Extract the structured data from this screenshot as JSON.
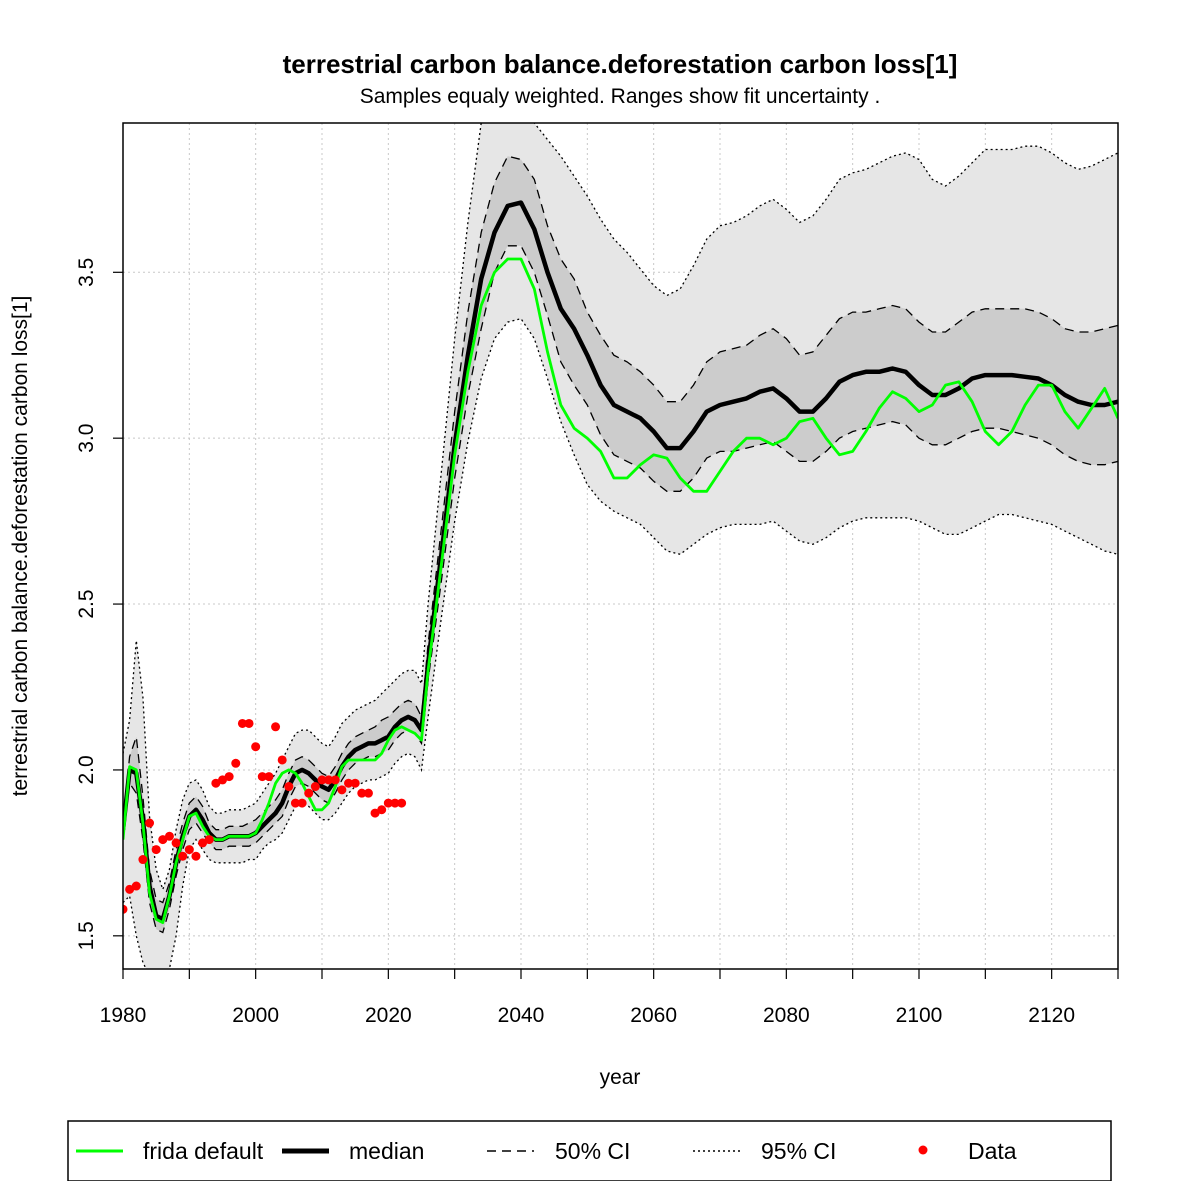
{
  "chart_data": {
    "type": "line",
    "title": "terrestrial carbon balance.deforestation carbon loss[1]",
    "subtitle": "Samples equaly weighted. Ranges show  fit uncertainty .",
    "xlabel": "year",
    "ylabel": "terrestrial carbon balance.deforestation carbon loss[1]",
    "xlim": [
      1980,
      2130
    ],
    "ylim": [
      1.4,
      3.95
    ],
    "x_ticks": [
      1980,
      2000,
      2020,
      2040,
      2060,
      2080,
      2100,
      2120
    ],
    "x_minor_ticks": [
      1990,
      2010,
      2030,
      2050,
      2070,
      2090,
      2110,
      2130
    ],
    "y_ticks": [
      1.5,
      2.0,
      2.5,
      3.0,
      3.5
    ],
    "y_tick_labels": [
      "1.5",
      "2.0",
      "2.5",
      "3.0",
      "3.5"
    ],
    "grid": true,
    "legend_position": "bottom",
    "legend": [
      {
        "label": "frida default",
        "style": "line",
        "color": "#00ff00"
      },
      {
        "label": "median",
        "style": "thick-line",
        "color": "#000000"
      },
      {
        "label": "50% CI",
        "style": "dashed",
        "color": "#000000"
      },
      {
        "label": "95% CI",
        "style": "dotted",
        "color": "#000000"
      },
      {
        "label": "Data",
        "style": "point",
        "color": "#ff0000"
      }
    ],
    "colors": {
      "frida_default": "#00ff00",
      "median": "#000000",
      "data": "#ff0000",
      "ci50_fill": "#cccccc",
      "ci95_fill": "#e6e6e6",
      "grid": "#c8c8c8"
    },
    "x": [
      1980,
      1981,
      1982,
      1983,
      1984,
      1985,
      1986,
      1987,
      1988,
      1989,
      1990,
      1991,
      1992,
      1993,
      1994,
      1995,
      1996,
      1997,
      1998,
      1999,
      2000,
      2001,
      2002,
      2003,
      2004,
      2005,
      2006,
      2007,
      2008,
      2009,
      2010,
      2011,
      2012,
      2013,
      2014,
      2015,
      2016,
      2017,
      2018,
      2019,
      2020,
      2021,
      2022,
      2023,
      2024,
      2025,
      2026,
      2028,
      2030,
      2032,
      2034,
      2036,
      2038,
      2040,
      2042,
      2044,
      2046,
      2048,
      2050,
      2052,
      2054,
      2056,
      2058,
      2060,
      2062,
      2064,
      2066,
      2068,
      2070,
      2072,
      2074,
      2076,
      2078,
      2080,
      2082,
      2084,
      2086,
      2088,
      2090,
      2092,
      2094,
      2096,
      2098,
      2100,
      2102,
      2104,
      2106,
      2108,
      2110,
      2112,
      2114,
      2116,
      2118,
      2120,
      2122,
      2124,
      2126,
      2128,
      2130
    ],
    "series": [
      {
        "name": "median",
        "values": [
          1.82,
          2.0,
          1.99,
          1.85,
          1.65,
          1.56,
          1.55,
          1.62,
          1.72,
          1.8,
          1.86,
          1.88,
          1.85,
          1.81,
          1.79,
          1.79,
          1.8,
          1.8,
          1.8,
          1.8,
          1.81,
          1.83,
          1.85,
          1.87,
          1.9,
          1.95,
          1.99,
          2.0,
          1.99,
          1.97,
          1.95,
          1.94,
          1.97,
          2.01,
          2.04,
          2.06,
          2.07,
          2.08,
          2.08,
          2.09,
          2.1,
          2.13,
          2.15,
          2.16,
          2.15,
          2.12,
          2.32,
          2.65,
          2.98,
          3.25,
          3.48,
          3.62,
          3.7,
          3.71,
          3.63,
          3.5,
          3.39,
          3.33,
          3.25,
          3.16,
          3.1,
          3.08,
          3.06,
          3.02,
          2.97,
          2.97,
          3.02,
          3.08,
          3.1,
          3.11,
          3.12,
          3.14,
          3.15,
          3.12,
          3.08,
          3.08,
          3.12,
          3.17,
          3.19,
          3.2,
          3.2,
          3.21,
          3.2,
          3.16,
          3.13,
          3.13,
          3.15,
          3.18,
          3.19,
          3.19,
          3.19,
          3.185,
          3.18,
          3.16,
          3.13,
          3.11,
          3.1,
          3.1,
          3.11
        ]
      },
      {
        "name": "frida default",
        "values": [
          1.79,
          2.01,
          2.0,
          1.84,
          1.63,
          1.55,
          1.54,
          1.62,
          1.72,
          1.79,
          1.86,
          1.87,
          1.83,
          1.8,
          1.79,
          1.79,
          1.8,
          1.8,
          1.8,
          1.8,
          1.81,
          1.85,
          1.9,
          1.96,
          1.99,
          2.0,
          1.99,
          1.96,
          1.92,
          1.88,
          1.88,
          1.9,
          1.95,
          2.01,
          2.03,
          2.03,
          2.03,
          2.03,
          2.03,
          2.05,
          2.09,
          2.12,
          2.13,
          2.12,
          2.11,
          2.09,
          2.3,
          2.62,
          2.95,
          3.2,
          3.4,
          3.5,
          3.54,
          3.54,
          3.45,
          3.26,
          3.1,
          3.03,
          3.0,
          2.96,
          2.88,
          2.88,
          2.92,
          2.95,
          2.94,
          2.88,
          2.84,
          2.84,
          2.9,
          2.96,
          3.0,
          3.0,
          2.98,
          3.0,
          3.05,
          3.06,
          3.0,
          2.95,
          2.96,
          3.02,
          3.09,
          3.14,
          3.12,
          3.08,
          3.1,
          3.16,
          3.17,
          3.11,
          3.02,
          2.98,
          3.02,
          3.1,
          3.16,
          3.16,
          3.08,
          3.03,
          3.09,
          3.15,
          3.06
        ]
      },
      {
        "name": "50% CI upper",
        "values": [
          1.84,
          2.04,
          2.1,
          1.92,
          1.7,
          1.61,
          1.6,
          1.66,
          1.76,
          1.84,
          1.9,
          1.92,
          1.89,
          1.84,
          1.82,
          1.82,
          1.83,
          1.83,
          1.83,
          1.84,
          1.85,
          1.87,
          1.89,
          1.91,
          1.94,
          1.99,
          2.03,
          2.04,
          2.03,
          2.01,
          1.99,
          1.98,
          2.01,
          2.05,
          2.08,
          2.1,
          2.11,
          2.12,
          2.13,
          2.15,
          2.16,
          2.18,
          2.2,
          2.21,
          2.2,
          2.16,
          2.38,
          2.73,
          3.08,
          3.38,
          3.62,
          3.77,
          3.85,
          3.84,
          3.78,
          3.64,
          3.54,
          3.48,
          3.38,
          3.31,
          3.25,
          3.23,
          3.2,
          3.16,
          3.11,
          3.11,
          3.16,
          3.23,
          3.26,
          3.27,
          3.28,
          3.31,
          3.33,
          3.3,
          3.25,
          3.26,
          3.31,
          3.36,
          3.38,
          3.38,
          3.39,
          3.4,
          3.39,
          3.35,
          3.32,
          3.32,
          3.35,
          3.38,
          3.39,
          3.39,
          3.39,
          3.39,
          3.38,
          3.36,
          3.33,
          3.32,
          3.32,
          3.33,
          3.34
        ]
      },
      {
        "name": "50% CI lower",
        "values": [
          1.79,
          1.96,
          1.93,
          1.79,
          1.6,
          1.52,
          1.51,
          1.58,
          1.68,
          1.76,
          1.82,
          1.84,
          1.81,
          1.78,
          1.76,
          1.76,
          1.77,
          1.77,
          1.77,
          1.77,
          1.78,
          1.8,
          1.82,
          1.84,
          1.86,
          1.91,
          1.95,
          1.96,
          1.95,
          1.93,
          1.91,
          1.9,
          1.93,
          1.97,
          2.0,
          2.02,
          2.03,
          2.04,
          2.04,
          2.05,
          2.06,
          2.09,
          2.11,
          2.12,
          2.11,
          2.08,
          2.27,
          2.57,
          2.88,
          3.13,
          3.33,
          3.5,
          3.58,
          3.58,
          3.5,
          3.37,
          3.23,
          3.16,
          3.1,
          3.01,
          2.95,
          2.93,
          2.91,
          2.87,
          2.84,
          2.84,
          2.88,
          2.94,
          2.96,
          2.96,
          2.97,
          2.98,
          2.99,
          2.96,
          2.93,
          2.93,
          2.96,
          3.0,
          3.02,
          3.03,
          3.04,
          3.05,
          3.04,
          3.0,
          2.98,
          2.98,
          3.0,
          3.02,
          3.03,
          3.03,
          3.02,
          3.01,
          3.0,
          2.98,
          2.95,
          2.93,
          2.92,
          2.92,
          2.93
        ]
      },
      {
        "name": "95% CI upper",
        "values": [
          2.05,
          2.15,
          2.39,
          2.22,
          1.86,
          1.7,
          1.64,
          1.7,
          1.82,
          1.91,
          1.96,
          1.97,
          1.94,
          1.89,
          1.87,
          1.87,
          1.88,
          1.88,
          1.88,
          1.89,
          1.9,
          1.93,
          1.96,
          1.99,
          2.03,
          2.07,
          2.11,
          2.12,
          2.12,
          2.1,
          2.08,
          2.07,
          2.1,
          2.14,
          2.16,
          2.18,
          2.19,
          2.2,
          2.21,
          2.23,
          2.25,
          2.27,
          2.29,
          2.3,
          2.3,
          2.26,
          2.5,
          2.9,
          3.3,
          3.65,
          3.95,
          4.0,
          4.0,
          4.0,
          3.95,
          3.9,
          3.85,
          3.79,
          3.73,
          3.66,
          3.6,
          3.56,
          3.51,
          3.46,
          3.43,
          3.45,
          3.52,
          3.6,
          3.64,
          3.65,
          3.67,
          3.7,
          3.72,
          3.69,
          3.65,
          3.67,
          3.72,
          3.78,
          3.8,
          3.81,
          3.83,
          3.85,
          3.86,
          3.84,
          3.78,
          3.76,
          3.79,
          3.83,
          3.87,
          3.87,
          3.87,
          3.88,
          3.88,
          3.86,
          3.83,
          3.81,
          3.82,
          3.84,
          3.86
        ]
      },
      {
        "name": "95% CI lower",
        "values": [
          1.6,
          1.62,
          1.5,
          1.42,
          1.38,
          1.38,
          1.36,
          1.4,
          1.5,
          1.65,
          1.76,
          1.79,
          1.76,
          1.73,
          1.72,
          1.72,
          1.72,
          1.72,
          1.72,
          1.73,
          1.73,
          1.76,
          1.78,
          1.79,
          1.81,
          1.85,
          1.89,
          1.9,
          1.89,
          1.87,
          1.85,
          1.85,
          1.87,
          1.9,
          1.93,
          1.95,
          1.96,
          1.97,
          1.97,
          1.98,
          1.99,
          2.02,
          2.04,
          2.05,
          2.04,
          2.0,
          2.16,
          2.46,
          2.75,
          2.99,
          3.18,
          3.3,
          3.35,
          3.36,
          3.3,
          3.18,
          3.05,
          2.95,
          2.86,
          2.81,
          2.78,
          2.76,
          2.74,
          2.7,
          2.66,
          2.65,
          2.68,
          2.71,
          2.73,
          2.74,
          2.74,
          2.74,
          2.75,
          2.72,
          2.69,
          2.68,
          2.7,
          2.73,
          2.75,
          2.76,
          2.76,
          2.76,
          2.76,
          2.75,
          2.73,
          2.71,
          2.71,
          2.73,
          2.75,
          2.77,
          2.77,
          2.76,
          2.75,
          2.74,
          2.72,
          2.7,
          2.68,
          2.66,
          2.65
        ]
      }
    ],
    "data_points": [
      {
        "x": 1980,
        "y": 1.58
      },
      {
        "x": 1981,
        "y": 1.64
      },
      {
        "x": 1982,
        "y": 1.65
      },
      {
        "x": 1983,
        "y": 1.73
      },
      {
        "x": 1984,
        "y": 1.84
      },
      {
        "x": 1985,
        "y": 1.76
      },
      {
        "x": 1986,
        "y": 1.79
      },
      {
        "x": 1987,
        "y": 1.8
      },
      {
        "x": 1988,
        "y": 1.78
      },
      {
        "x": 1989,
        "y": 1.74
      },
      {
        "x": 1990,
        "y": 1.76
      },
      {
        "x": 1991,
        "y": 1.74
      },
      {
        "x": 1992,
        "y": 1.78
      },
      {
        "x": 1993,
        "y": 1.79
      },
      {
        "x": 1994,
        "y": 1.96
      },
      {
        "x": 1995,
        "y": 1.97
      },
      {
        "x": 1996,
        "y": 1.98
      },
      {
        "x": 1997,
        "y": 2.02
      },
      {
        "x": 1998,
        "y": 2.14
      },
      {
        "x": 1999,
        "y": 2.14
      },
      {
        "x": 2000,
        "y": 2.07
      },
      {
        "x": 2001,
        "y": 1.98
      },
      {
        "x": 2002,
        "y": 1.98
      },
      {
        "x": 2003,
        "y": 2.13
      },
      {
        "x": 2004,
        "y": 2.03
      },
      {
        "x": 2005,
        "y": 1.95
      },
      {
        "x": 2006,
        "y": 1.9
      },
      {
        "x": 2007,
        "y": 1.9
      },
      {
        "x": 2008,
        "y": 1.93
      },
      {
        "x": 2009,
        "y": 1.95
      },
      {
        "x": 2010,
        "y": 1.97
      },
      {
        "x": 2011,
        "y": 1.97
      },
      {
        "x": 2012,
        "y": 1.97
      },
      {
        "x": 2013,
        "y": 1.94
      },
      {
        "x": 2014,
        "y": 1.96
      },
      {
        "x": 2015,
        "y": 1.96
      },
      {
        "x": 2016,
        "y": 1.93
      },
      {
        "x": 2017,
        "y": 1.93
      },
      {
        "x": 2018,
        "y": 1.87
      },
      {
        "x": 2019,
        "y": 1.88
      },
      {
        "x": 2020,
        "y": 1.9
      },
      {
        "x": 2021,
        "y": 1.9
      },
      {
        "x": 2022,
        "y": 1.9
      }
    ]
  }
}
